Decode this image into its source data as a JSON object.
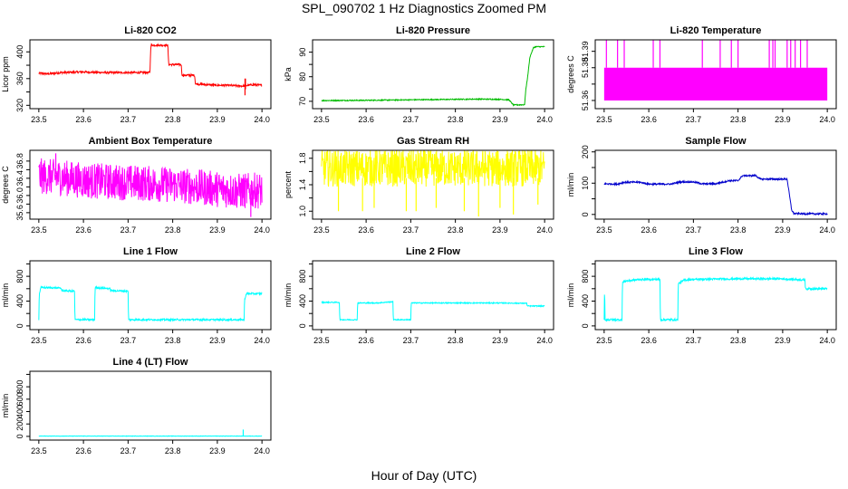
{
  "page": {
    "title": "SPL_090702  1 Hz Diagnostics Zoomed PM",
    "xlabel": "Hour of Day (UTC)"
  },
  "chart_data": [
    {
      "id": "co2",
      "type": "line",
      "title": "Li-820 CO2",
      "ylabel": "Licor ppm",
      "color": "#ff0000",
      "xlim": [
        23.48,
        24.02
      ],
      "ylim": [
        315,
        418
      ],
      "yticks": [
        320,
        340,
        360,
        380,
        400
      ],
      "ytick_labels": [
        "320",
        "",
        "360",
        "",
        "400"
      ],
      "xticks": [
        23.5,
        23.6,
        23.7,
        23.8,
        23.9,
        24.0
      ],
      "xtick_labels": [
        "23.5",
        "23.6",
        "23.7",
        "23.8",
        "23.9",
        "24.0"
      ],
      "series": [
        {
          "noise": 1.5,
          "x": [
            23.5,
            23.52,
            23.55,
            23.6,
            23.65,
            23.7,
            23.749,
            23.751,
            23.78,
            23.789,
            23.791,
            23.8,
            23.819,
            23.821,
            23.84,
            23.849,
            23.851,
            23.9,
            23.92,
            23.95,
            23.96,
            23.98,
            24.0
          ],
          "y": [
            368,
            367,
            369,
            370,
            369,
            369,
            369,
            410,
            410,
            410,
            381,
            381,
            381,
            365,
            365,
            365,
            352,
            350,
            350,
            349,
            349,
            351,
            350
          ]
        }
      ],
      "spikes": [
        {
          "x": 23.962,
          "y0": 335,
          "y1": 360
        },
        {
          "x": 23.963,
          "y0": 344,
          "y1": 360
        }
      ]
    },
    {
      "id": "pressure",
      "type": "line",
      "title": "Li-820 Pressure",
      "ylabel": "kPa",
      "color": "#00bb00",
      "xlim": [
        23.48,
        24.02
      ],
      "ylim": [
        67,
        95
      ],
      "yticks": [
        70,
        75,
        80,
        85,
        90
      ],
      "ytick_labels": [
        "70",
        "",
        "80",
        "",
        "90"
      ],
      "xticks": [
        23.5,
        23.6,
        23.7,
        23.8,
        23.9,
        24.0
      ],
      "xtick_labels": [
        "23.5",
        "23.6",
        "23.7",
        "23.8",
        "23.9",
        "24.0"
      ],
      "series": [
        {
          "noise": 0.2,
          "x": [
            23.5,
            23.6,
            23.65,
            23.7,
            23.8,
            23.85,
            23.9,
            23.92,
            23.93,
            23.955,
            23.958,
            23.962,
            23.967,
            23.975,
            23.98,
            24.0
          ],
          "y": [
            70.3,
            70.4,
            70.5,
            70.6,
            70.8,
            70.9,
            70.8,
            70.6,
            68.5,
            68.6,
            75.0,
            80.0,
            88.0,
            91.8,
            92.2,
            92.2
          ]
        }
      ]
    },
    {
      "id": "li820temp",
      "type": "band",
      "title": "Li-820 Temperature",
      "ylabel": "degrees C",
      "color": "#ff00ff",
      "xlim": [
        23.48,
        24.02
      ],
      "ylim": [
        51.355,
        51.397
      ],
      "yticks": [
        51.36,
        51.37,
        51.38,
        51.39
      ],
      "ytick_labels": [
        "51.36",
        "",
        "51.38",
        "51.39"
      ],
      "xticks": [
        23.5,
        23.6,
        23.7,
        23.8,
        23.9,
        24.0
      ],
      "xtick_labels": [
        "23.5",
        "23.6",
        "23.7",
        "23.8",
        "23.9",
        "24.0"
      ],
      "band": [
        51.36,
        51.38
      ],
      "spikes_x": [
        23.505,
        23.53,
        23.545,
        23.61,
        23.625,
        23.72,
        23.76,
        23.785,
        23.8,
        23.87,
        23.878,
        23.883,
        23.91,
        23.918,
        23.928,
        23.94,
        23.955
      ],
      "spike_top": 51.397
    },
    {
      "id": "ambient",
      "type": "line",
      "title": "Ambient Box Temperature",
      "ylabel": "degrees C",
      "color": "#ff00ff",
      "xlim": [
        23.48,
        24.02
      ],
      "ylim": [
        35.45,
        37.05
      ],
      "yticks": [
        35.6,
        35.8,
        36.0,
        36.2,
        36.4,
        36.6,
        36.8
      ],
      "ytick_labels": [
        "35.6",
        "",
        "36.0",
        "",
        "36.4",
        "",
        "36.8"
      ],
      "xticks": [
        23.5,
        23.6,
        23.7,
        23.8,
        23.9,
        24.0
      ],
      "xtick_labels": [
        "23.5",
        "23.6",
        "23.7",
        "23.8",
        "23.9",
        "24.0"
      ],
      "series": [
        {
          "noise": 0.42,
          "x": [
            23.5,
            23.55,
            23.6,
            23.7,
            23.8,
            23.85,
            23.9,
            23.95,
            24.0
          ],
          "y": [
            36.45,
            36.42,
            36.35,
            36.3,
            36.25,
            36.2,
            36.15,
            36.1,
            36.12
          ]
        }
      ],
      "spikes": [
        {
          "x": 23.538,
          "y0": 36.5,
          "y1": 36.98
        },
        {
          "x": 23.975,
          "y0": 35.5,
          "y1": 35.95
        }
      ]
    },
    {
      "id": "rh",
      "type": "line",
      "title": "Gas Stream RH",
      "ylabel": "percent",
      "color": "#ffff00",
      "xlim": [
        23.48,
        24.02
      ],
      "ylim": [
        0.88,
        1.92
      ],
      "yticks": [
        1.0,
        1.2,
        1.4,
        1.6,
        1.8
      ],
      "ytick_labels": [
        "1.0",
        "",
        "1.4",
        "",
        "1.8"
      ],
      "xticks": [
        23.5,
        23.6,
        23.7,
        23.8,
        23.9,
        24.0
      ],
      "xtick_labels": [
        "23.5",
        "23.6",
        "23.7",
        "23.8",
        "23.9",
        "24.0"
      ],
      "series": [
        {
          "noise": 0.28,
          "x": [
            23.5,
            24.0
          ],
          "y": [
            1.65,
            1.65
          ]
        }
      ],
      "spikes": [
        {
          "x": 23.538,
          "y0": 1.0,
          "y1": 1.5
        },
        {
          "x": 23.592,
          "y0": 1.0,
          "y1": 1.5
        },
        {
          "x": 23.618,
          "y0": 1.05,
          "y1": 1.5
        },
        {
          "x": 23.69,
          "y0": 1.0,
          "y1": 1.5
        },
        {
          "x": 23.712,
          "y0": 1.0,
          "y1": 1.5
        },
        {
          "x": 23.757,
          "y0": 1.05,
          "y1": 1.5
        },
        {
          "x": 23.82,
          "y0": 1.0,
          "y1": 1.5
        },
        {
          "x": 23.852,
          "y0": 0.92,
          "y1": 1.5
        },
        {
          "x": 23.9,
          "y0": 1.05,
          "y1": 1.5
        },
        {
          "x": 23.93,
          "y0": 0.95,
          "y1": 1.5
        },
        {
          "x": 23.985,
          "y0": 1.1,
          "y1": 1.5
        }
      ]
    },
    {
      "id": "sample",
      "type": "line",
      "title": "Sample Flow",
      "ylabel": "ml/min",
      "color": "#0000cc",
      "xlim": [
        23.48,
        24.02
      ],
      "ylim": [
        -15,
        205
      ],
      "yticks": [
        0,
        50,
        100,
        150,
        200
      ],
      "ytick_labels": [
        "0",
        "",
        "100",
        "",
        "200"
      ],
      "xticks": [
        23.5,
        23.6,
        23.7,
        23.8,
        23.9,
        24.0
      ],
      "xtick_labels": [
        "23.5",
        "23.6",
        "23.7",
        "23.8",
        "23.9",
        "24.0"
      ],
      "series": [
        {
          "noise": 2.5,
          "x": [
            23.5,
            23.53,
            23.545,
            23.58,
            23.6,
            23.65,
            23.67,
            23.7,
            23.72,
            23.75,
            23.78,
            23.8,
            23.81,
            23.84,
            23.85,
            23.9,
            23.91,
            23.92,
            23.925,
            23.95,
            24.0
          ],
          "y": [
            98,
            97,
            103,
            103,
            97,
            97,
            104,
            104,
            98,
            98,
            108,
            108,
            124,
            124,
            113,
            113,
            113,
            15,
            3,
            2,
            2
          ]
        }
      ]
    },
    {
      "id": "line1",
      "type": "line",
      "title": "Line 1 Flow",
      "ylabel": "ml/min",
      "color": "#00ffff",
      "xlim": [
        23.48,
        24.02
      ],
      "ylim": [
        -60,
        1050
      ],
      "yticks": [
        0,
        200,
        400,
        600,
        800,
        1000
      ],
      "ytick_labels": [
        "0",
        "",
        "400",
        "",
        "800",
        ""
      ],
      "xticks": [
        23.5,
        23.6,
        23.7,
        23.8,
        23.9,
        24.0
      ],
      "xtick_labels": [
        "23.5",
        "23.6",
        "23.7",
        "23.8",
        "23.9",
        "24.0"
      ],
      "series": [
        {
          "noise": 14,
          "x": [
            23.5,
            23.501,
            23.505,
            23.55,
            23.551,
            23.58,
            23.581,
            23.625,
            23.626,
            23.66,
            23.661,
            23.7,
            23.701,
            23.96,
            23.961,
            23.965,
            24.0
          ],
          "y": [
            100,
            520,
            620,
            610,
            570,
            560,
            100,
            100,
            620,
            600,
            570,
            560,
            100,
            100,
            420,
            520,
            520
          ]
        }
      ]
    },
    {
      "id": "line2",
      "type": "line",
      "title": "Line 2 Flow",
      "ylabel": "ml/min",
      "color": "#00ffff",
      "xlim": [
        23.48,
        24.02
      ],
      "ylim": [
        -60,
        1050
      ],
      "yticks": [
        0,
        200,
        400,
        600,
        800,
        1000
      ],
      "ytick_labels": [
        "0",
        "",
        "400",
        "",
        "800",
        ""
      ],
      "xticks": [
        23.5,
        23.6,
        23.7,
        23.8,
        23.9,
        24.0
      ],
      "xtick_labels": [
        "23.5",
        "23.6",
        "23.7",
        "23.8",
        "23.9",
        "24.0"
      ],
      "series": [
        {
          "noise": 8,
          "x": [
            23.5,
            23.54,
            23.541,
            23.58,
            23.581,
            23.625,
            23.66,
            23.661,
            23.7,
            23.701,
            23.8,
            23.9,
            23.95,
            23.96,
            23.961,
            24.0
          ],
          "y": [
            380,
            380,
            100,
            100,
            370,
            370,
            390,
            100,
            100,
            370,
            370,
            370,
            365,
            365,
            320,
            320
          ]
        }
      ]
    },
    {
      "id": "line3",
      "type": "line",
      "title": "Line 3 Flow",
      "ylabel": "ml/min",
      "color": "#00ffff",
      "xlim": [
        23.48,
        24.02
      ],
      "ylim": [
        -60,
        1050
      ],
      "yticks": [
        0,
        200,
        400,
        600,
        800,
        1000
      ],
      "ytick_labels": [
        "0",
        "",
        "400",
        "",
        "800",
        ""
      ],
      "xticks": [
        23.5,
        23.6,
        23.7,
        23.8,
        23.9,
        24.0
      ],
      "xtick_labels": [
        "23.5",
        "23.6",
        "23.7",
        "23.8",
        "23.9",
        "24.0"
      ],
      "series": [
        {
          "noise": 16,
          "x": [
            23.5,
            23.501,
            23.502,
            23.54,
            23.541,
            23.545,
            23.58,
            23.625,
            23.626,
            23.665,
            23.666,
            23.68,
            23.7,
            23.8,
            23.9,
            23.95,
            23.951,
            24.0
          ],
          "y": [
            100,
            650,
            100,
            100,
            700,
            720,
            750,
            750,
            100,
            100,
            680,
            740,
            750,
            760,
            760,
            740,
            600,
            600
          ]
        }
      ]
    },
    {
      "id": "line4",
      "type": "line",
      "title": "Line 4 (LT) Flow",
      "ylabel": "ml/min",
      "color": "#00ffff",
      "xlim": [
        23.48,
        24.02
      ],
      "ylim": [
        -60,
        1050
      ],
      "yticks": [
        0,
        200,
        400,
        600,
        800,
        1000
      ],
      "ytick_labels": [
        "0",
        "200",
        "400",
        "600",
        "800",
        ""
      ],
      "xticks": [
        23.5,
        23.6,
        23.7,
        23.8,
        23.9,
        24.0
      ],
      "xtick_labels": [
        "23.5",
        "23.6",
        "23.7",
        "23.8",
        "23.9",
        "24.0"
      ],
      "series": [
        {
          "noise": 3,
          "x": [
            23.5,
            23.8,
            23.95,
            24.0
          ],
          "y": [
            5,
            5,
            5,
            5
          ]
        }
      ],
      "spikes": [
        {
          "x": 23.958,
          "y0": 5,
          "y1": 110
        }
      ]
    }
  ]
}
